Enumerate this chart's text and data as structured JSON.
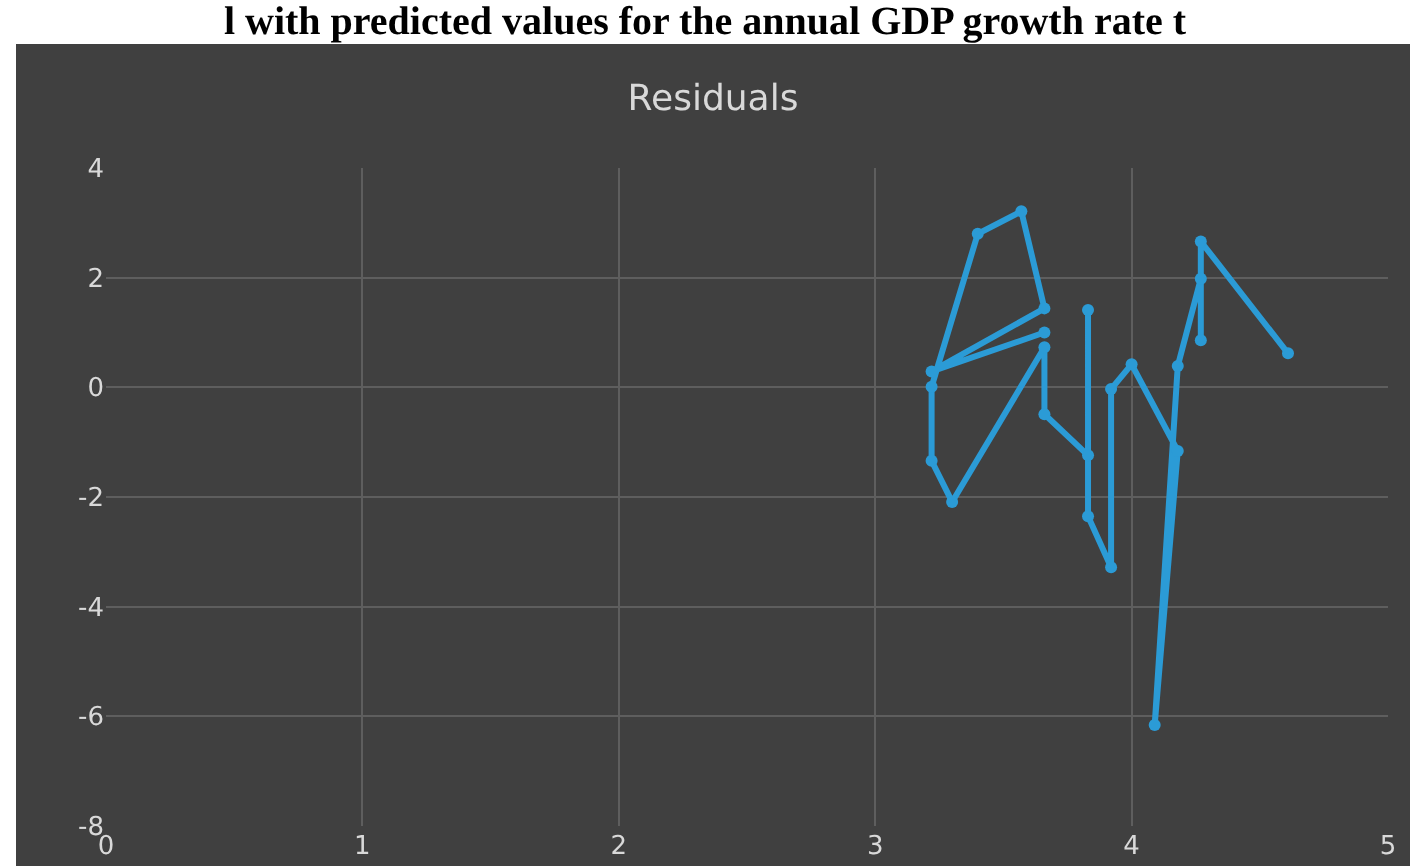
{
  "chart_data": {
    "type": "line",
    "title": "Residuals",
    "annotations": [
      "l with predicted values for the annual GDP growth rate t"
    ],
    "x": [
      3.66,
      3.22,
      3.66,
      3.57,
      3.4,
      3.22,
      3.22,
      3.3,
      3.66,
      3.66,
      3.83,
      3.83,
      3.83,
      3.92,
      3.92,
      4.0,
      4.18,
      4.09,
      4.18,
      4.27,
      4.27,
      4.27,
      4.61
    ],
    "series": [
      {
        "color": "#2b9bd6",
        "values": [
          1.0,
          0.29,
          1.44,
          3.21,
          2.8,
          0.01,
          -1.34,
          -2.09,
          0.73,
          -0.49,
          -1.24,
          1.41,
          -2.35,
          -3.28,
          -0.03,
          0.42,
          -1.16,
          -6.16,
          0.39,
          1.98,
          0.86,
          2.66,
          0.62
        ]
      }
    ],
    "xlim": [
      0,
      5
    ],
    "xticks": [
      0,
      1,
      2,
      3,
      4,
      5
    ],
    "ylim": [
      -8,
      4
    ],
    "yticks": [
      -8,
      -6,
      -4,
      -2,
      0,
      2,
      4
    ],
    "grid": true,
    "marker": "circle",
    "line_style": "solid"
  }
}
